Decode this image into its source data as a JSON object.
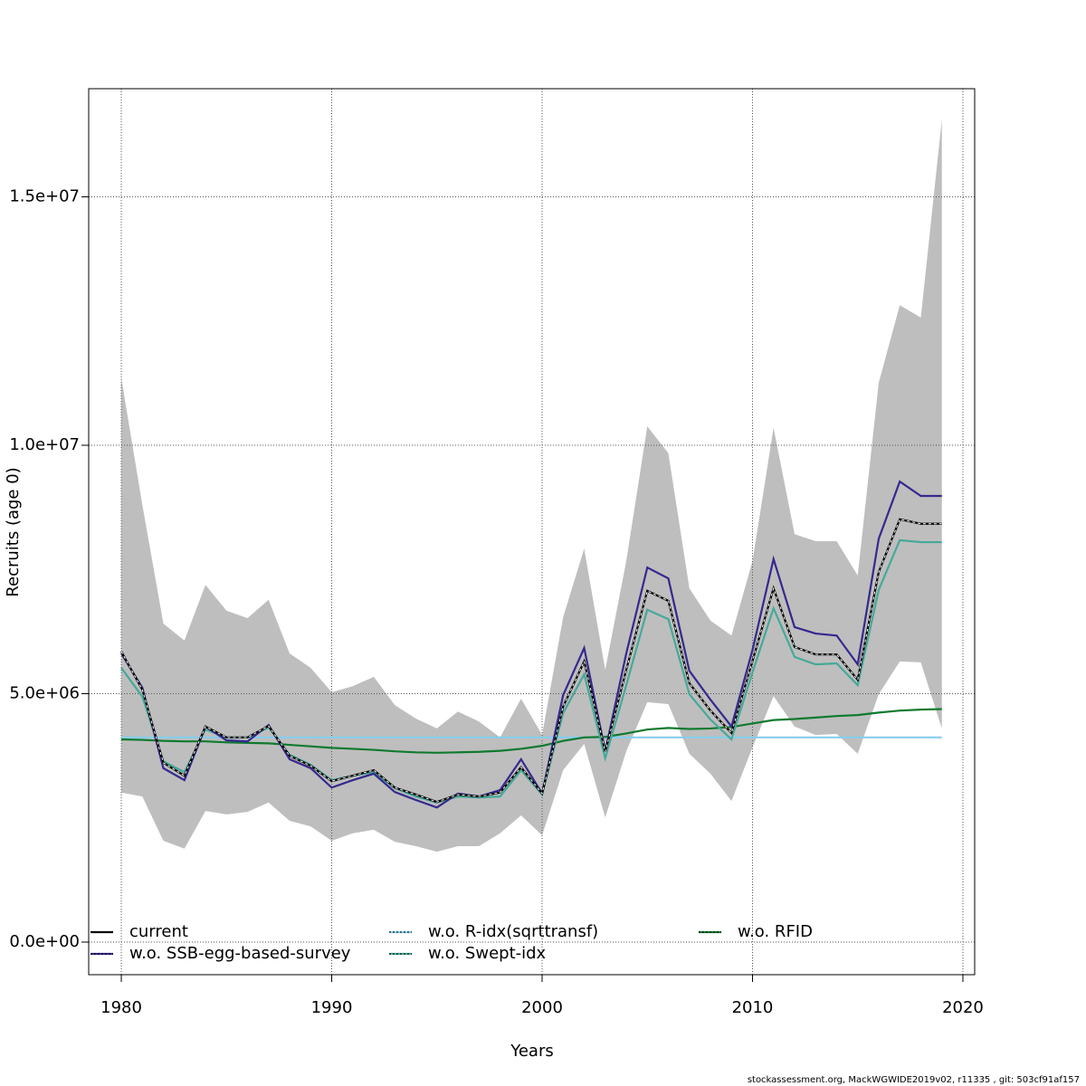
{
  "chart_data": {
    "type": "line",
    "x_label": "Years",
    "y_label": "Recruits (age 0)",
    "footer": "stockassessment.org, MackWGWIDE2019v02, r11335 , git: 503cf91af157",
    "x": [
      1980,
      1981,
      1982,
      1983,
      1984,
      1985,
      1986,
      1987,
      1988,
      1989,
      1990,
      1991,
      1992,
      1993,
      1994,
      1995,
      1996,
      1997,
      1998,
      1999,
      2000,
      2001,
      2002,
      2003,
      2004,
      2005,
      2006,
      2007,
      2008,
      2009,
      2010,
      2011,
      2012,
      2013,
      2014,
      2015,
      2016,
      2017,
      2018,
      2019
    ],
    "band": {
      "color": "#bebebe",
      "upper": [
        11350000,
        8800000,
        6410000,
        6070000,
        7190000,
        6670000,
        6520000,
        6890000,
        5810000,
        5520000,
        5030000,
        5150000,
        5340000,
        4770000,
        4500000,
        4300000,
        4640000,
        4440000,
        4120000,
        4900000,
        4170000,
        6540000,
        7920000,
        5480000,
        7670000,
        10380000,
        9840000,
        7120000,
        6470000,
        6170000,
        7670000,
        10350000,
        8210000,
        8070000,
        8070000,
        7380000,
        11260000,
        12820000,
        12570000,
        16560000
      ],
      "lower": [
        3010000,
        2930000,
        2040000,
        1880000,
        2640000,
        2570000,
        2620000,
        2810000,
        2440000,
        2330000,
        2040000,
        2190000,
        2260000,
        2020000,
        1930000,
        1820000,
        1930000,
        1930000,
        2190000,
        2550000,
        2150000,
        3460000,
        3990000,
        2510000,
        3840000,
        4830000,
        4790000,
        3790000,
        3390000,
        2840000,
        3920000,
        4950000,
        4340000,
        4170000,
        4190000,
        3790000,
        4990000,
        5650000,
        5630000,
        4300000
      ]
    },
    "series": [
      {
        "name": "w.o. R-idx(sqrttransf)",
        "color": "#87ceeb",
        "values": [
          4120000,
          4120000,
          4120000,
          4120000,
          4120000,
          4120000,
          4120000,
          4120000,
          4120000,
          4120000,
          4120000,
          4120000,
          4120000,
          4120000,
          4120000,
          4120000,
          4120000,
          4120000,
          4120000,
          4120000,
          4120000,
          4120000,
          4120000,
          4120000,
          4120000,
          4120000,
          4120000,
          4120000,
          4120000,
          4120000,
          4120000,
          4120000,
          4120000,
          4120000,
          4120000,
          4120000,
          4120000,
          4120000,
          4120000,
          4120000
        ]
      },
      {
        "name": "w.o. RFID",
        "color": "#0f7a2e",
        "values": [
          4080000,
          4070000,
          4050000,
          4040000,
          4040000,
          4020000,
          4010000,
          4000000,
          3970000,
          3940000,
          3910000,
          3890000,
          3870000,
          3840000,
          3820000,
          3810000,
          3820000,
          3830000,
          3850000,
          3890000,
          3950000,
          4050000,
          4120000,
          4130000,
          4200000,
          4280000,
          4310000,
          4290000,
          4300000,
          4330000,
          4400000,
          4470000,
          4490000,
          4520000,
          4550000,
          4570000,
          4620000,
          4660000,
          4680000,
          4690000
        ]
      },
      {
        "name": "w.o. Swept-idx",
        "color": "#45a99a",
        "values": [
          5520000,
          4940000,
          3640000,
          3420000,
          4280000,
          4120000,
          4120000,
          4320000,
          3770000,
          3570000,
          3260000,
          3350000,
          3420000,
          3100000,
          2930000,
          2810000,
          2930000,
          2910000,
          2930000,
          3460000,
          2970000,
          4610000,
          5390000,
          3700000,
          5170000,
          6690000,
          6500000,
          4990000,
          4480000,
          4080000,
          5430000,
          6720000,
          5740000,
          5590000,
          5610000,
          5170000,
          7090000,
          8090000,
          8050000,
          8050000
        ]
      },
      {
        "name": "w.o. SSB-egg-based-survey",
        "color": "#35288f",
        "values": [
          5810000,
          5120000,
          3500000,
          3260000,
          4340000,
          4060000,
          4040000,
          4370000,
          3680000,
          3500000,
          3110000,
          3260000,
          3390000,
          3020000,
          2860000,
          2710000,
          2990000,
          2930000,
          3060000,
          3680000,
          2990000,
          4970000,
          5920000,
          3840000,
          5810000,
          7540000,
          7320000,
          5460000,
          4880000,
          4340000,
          5880000,
          7710000,
          6340000,
          6210000,
          6170000,
          5590000,
          8120000,
          9270000,
          8980000,
          8980000
        ]
      },
      {
        "name": "current",
        "color": "#000000",
        "values": [
          5850000,
          5080000,
          3610000,
          3350000,
          4340000,
          4120000,
          4120000,
          4350000,
          3750000,
          3550000,
          3240000,
          3350000,
          3460000,
          3110000,
          2970000,
          2820000,
          2970000,
          2930000,
          3010000,
          3520000,
          2990000,
          4740000,
          5650000,
          3830000,
          5480000,
          7070000,
          6870000,
          5210000,
          4660000,
          4210000,
          5660000,
          7120000,
          5940000,
          5790000,
          5790000,
          5280000,
          7450000,
          8510000,
          8420000,
          8420000
        ]
      }
    ],
    "legend_order": [
      4,
      3,
      0,
      2,
      1
    ],
    "xlim": [
      1978.45,
      2020.56
    ],
    "xticks": [
      1980,
      1990,
      2000,
      2010,
      2020
    ],
    "ylim": [
      -655700,
      17177000
    ],
    "yticks": [
      {
        "value": 0,
        "label": "0.0e+00"
      },
      {
        "value": 5000000,
        "label": "5.0e+06"
      },
      {
        "value": 10000000,
        "label": "1.0e+07"
      },
      {
        "value": 15000000,
        "label": "1.5e+07"
      }
    ],
    "grid": true
  }
}
